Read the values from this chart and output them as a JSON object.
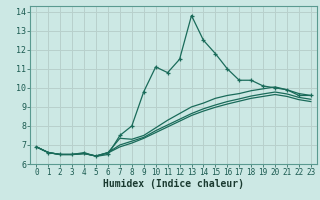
{
  "xlabel": "Humidex (Indice chaleur)",
  "background_color": "#cce8e4",
  "grid_color": "#b8d0cc",
  "line_color": "#1a6b5a",
  "xlim": [
    -0.5,
    23.5
  ],
  "ylim": [
    6.0,
    14.3
  ],
  "xticks": [
    0,
    1,
    2,
    3,
    4,
    5,
    6,
    7,
    8,
    9,
    10,
    11,
    12,
    13,
    14,
    15,
    16,
    17,
    18,
    19,
    20,
    21,
    22,
    23
  ],
  "yticks": [
    6,
    7,
    8,
    9,
    10,
    11,
    12,
    13,
    14
  ],
  "series": [
    [
      6.9,
      6.6,
      6.5,
      6.5,
      6.6,
      6.4,
      6.5,
      7.5,
      8.0,
      9.8,
      11.1,
      10.8,
      11.5,
      13.8,
      12.5,
      11.8,
      11.0,
      10.4,
      10.4,
      10.1,
      10.0,
      9.9,
      9.6,
      9.6
    ],
    [
      6.9,
      6.6,
      6.5,
      6.5,
      6.55,
      6.42,
      6.6,
      7.35,
      7.3,
      7.5,
      7.9,
      8.3,
      8.65,
      9.0,
      9.2,
      9.45,
      9.6,
      9.7,
      9.85,
      9.95,
      10.05,
      9.9,
      9.7,
      9.6
    ],
    [
      6.9,
      6.6,
      6.5,
      6.5,
      6.55,
      6.42,
      6.6,
      7.0,
      7.2,
      7.4,
      7.75,
      8.05,
      8.35,
      8.65,
      8.9,
      9.1,
      9.28,
      9.42,
      9.57,
      9.68,
      9.78,
      9.68,
      9.5,
      9.4
    ],
    [
      6.9,
      6.6,
      6.5,
      6.5,
      6.55,
      6.42,
      6.58,
      6.9,
      7.1,
      7.35,
      7.65,
      7.95,
      8.25,
      8.55,
      8.78,
      8.98,
      9.15,
      9.3,
      9.45,
      9.55,
      9.65,
      9.55,
      9.38,
      9.28
    ]
  ],
  "xlabel_fontsize": 7,
  "tick_fontsize": 5.5
}
